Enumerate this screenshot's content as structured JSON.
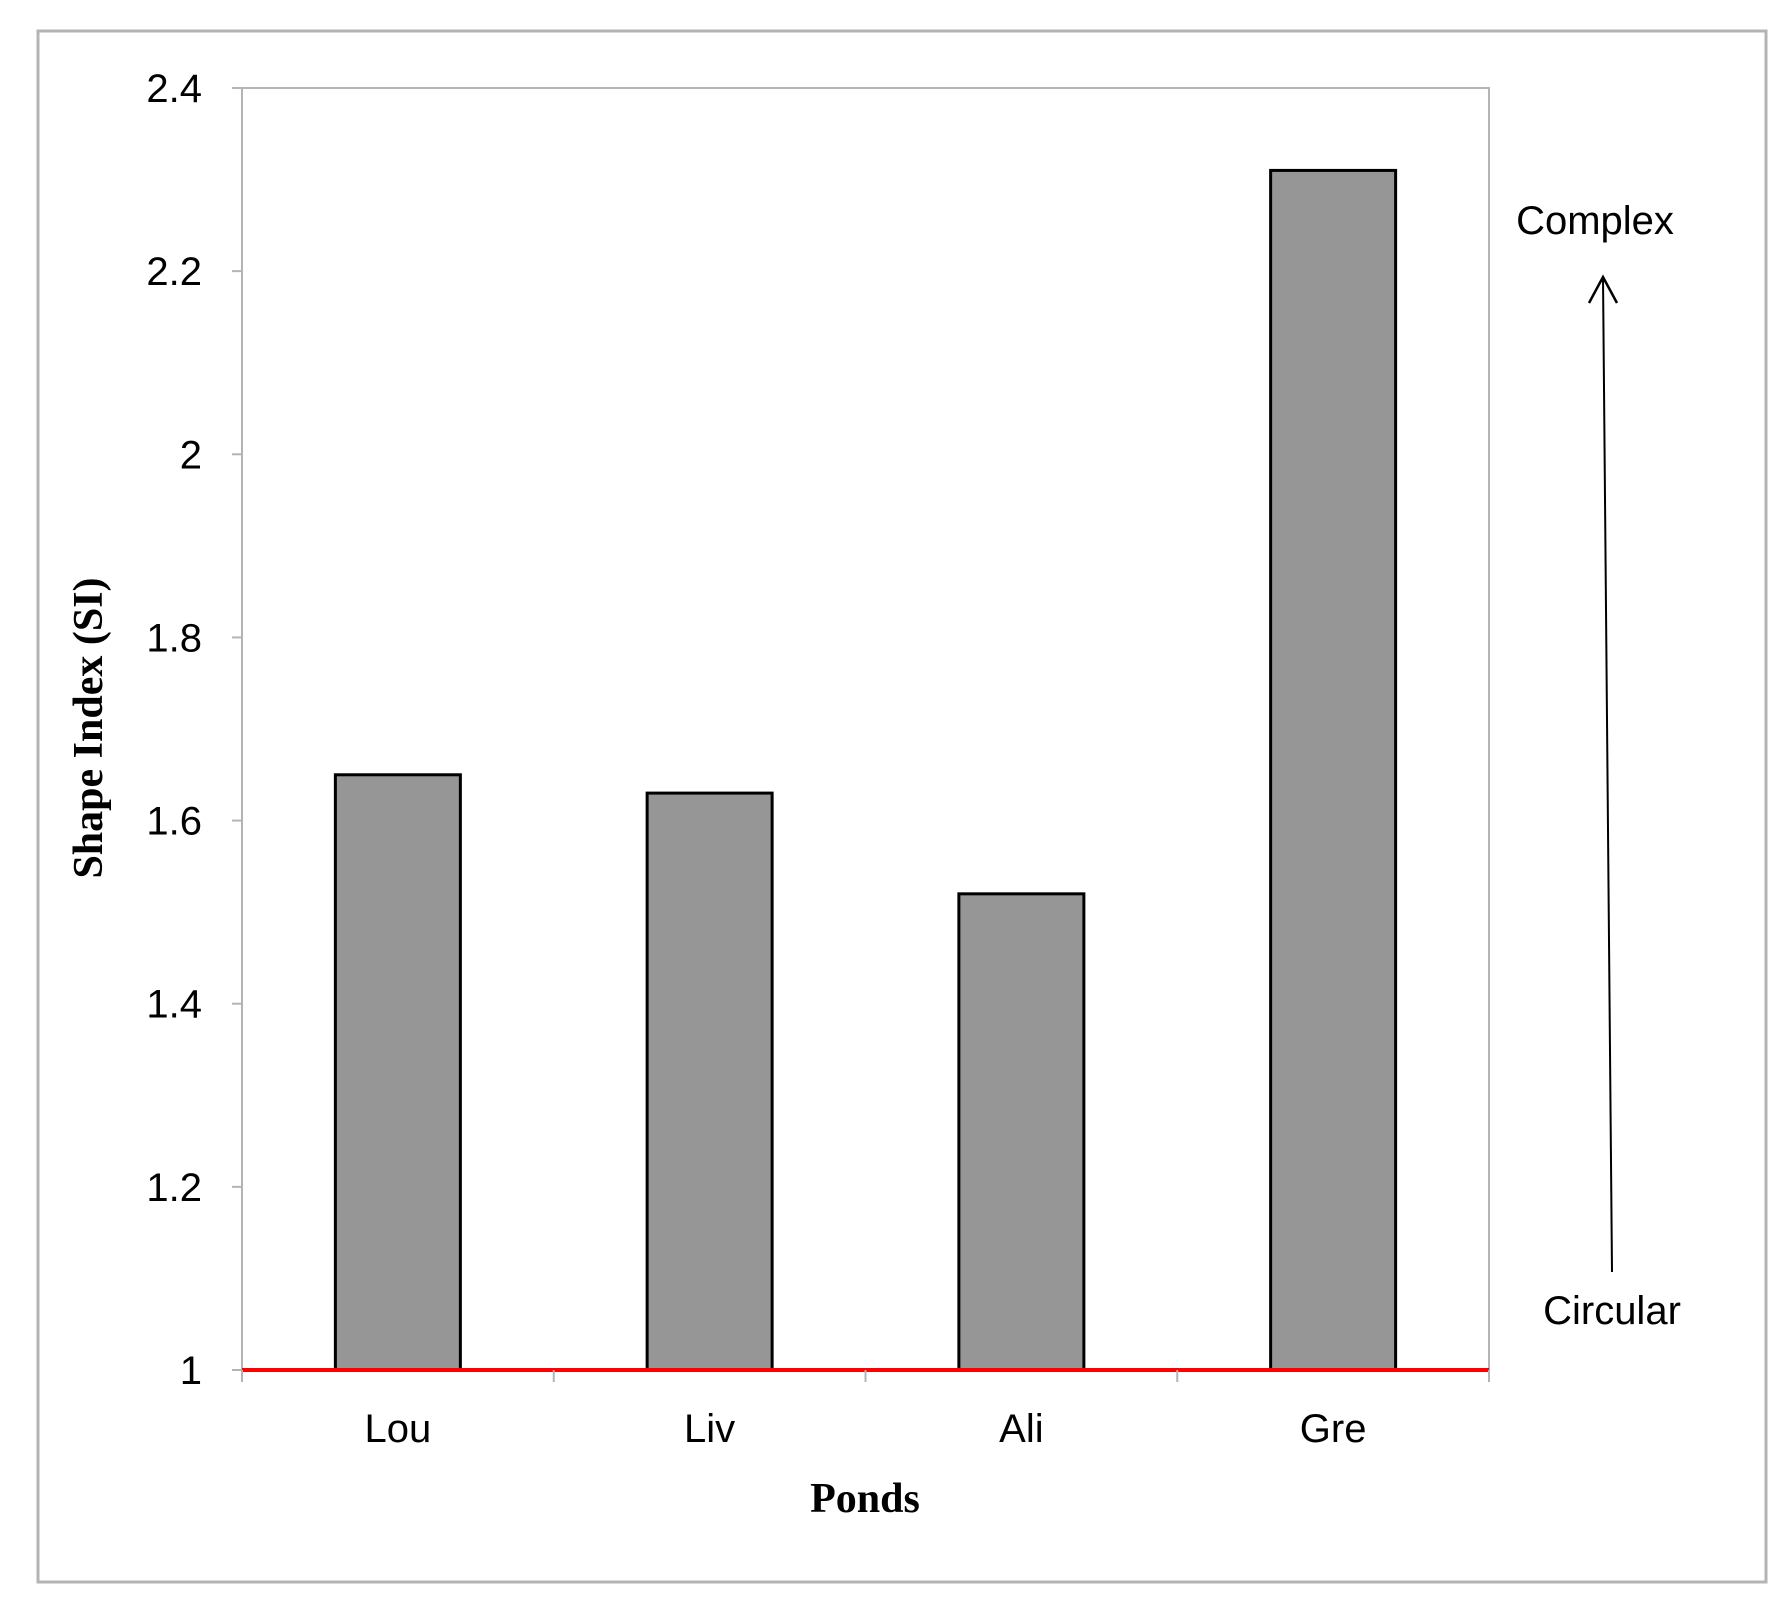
{
  "chart_data": {
    "type": "bar",
    "categories": [
      "Lou",
      "Liv",
      "Ali",
      "Gre"
    ],
    "series": [
      {
        "values": [
          1.65,
          1.63,
          1.52,
          2.31
        ]
      }
    ],
    "xlabel": "Ponds",
    "ylabel": "Shape Index (SI)",
    "ylim": [
      1,
      2.4
    ],
    "yticks": [
      "1",
      "1.2",
      "1.4",
      "1.6",
      "1.8",
      "2",
      "2.2",
      "2.4"
    ],
    "reference_line": {
      "y": 1,
      "color": "#ff0000"
    },
    "bar_color": "#969696",
    "grid": false,
    "legend": "none",
    "annotations": {
      "top": "Complex",
      "bottom": "Circular",
      "arrow": "up"
    }
  }
}
